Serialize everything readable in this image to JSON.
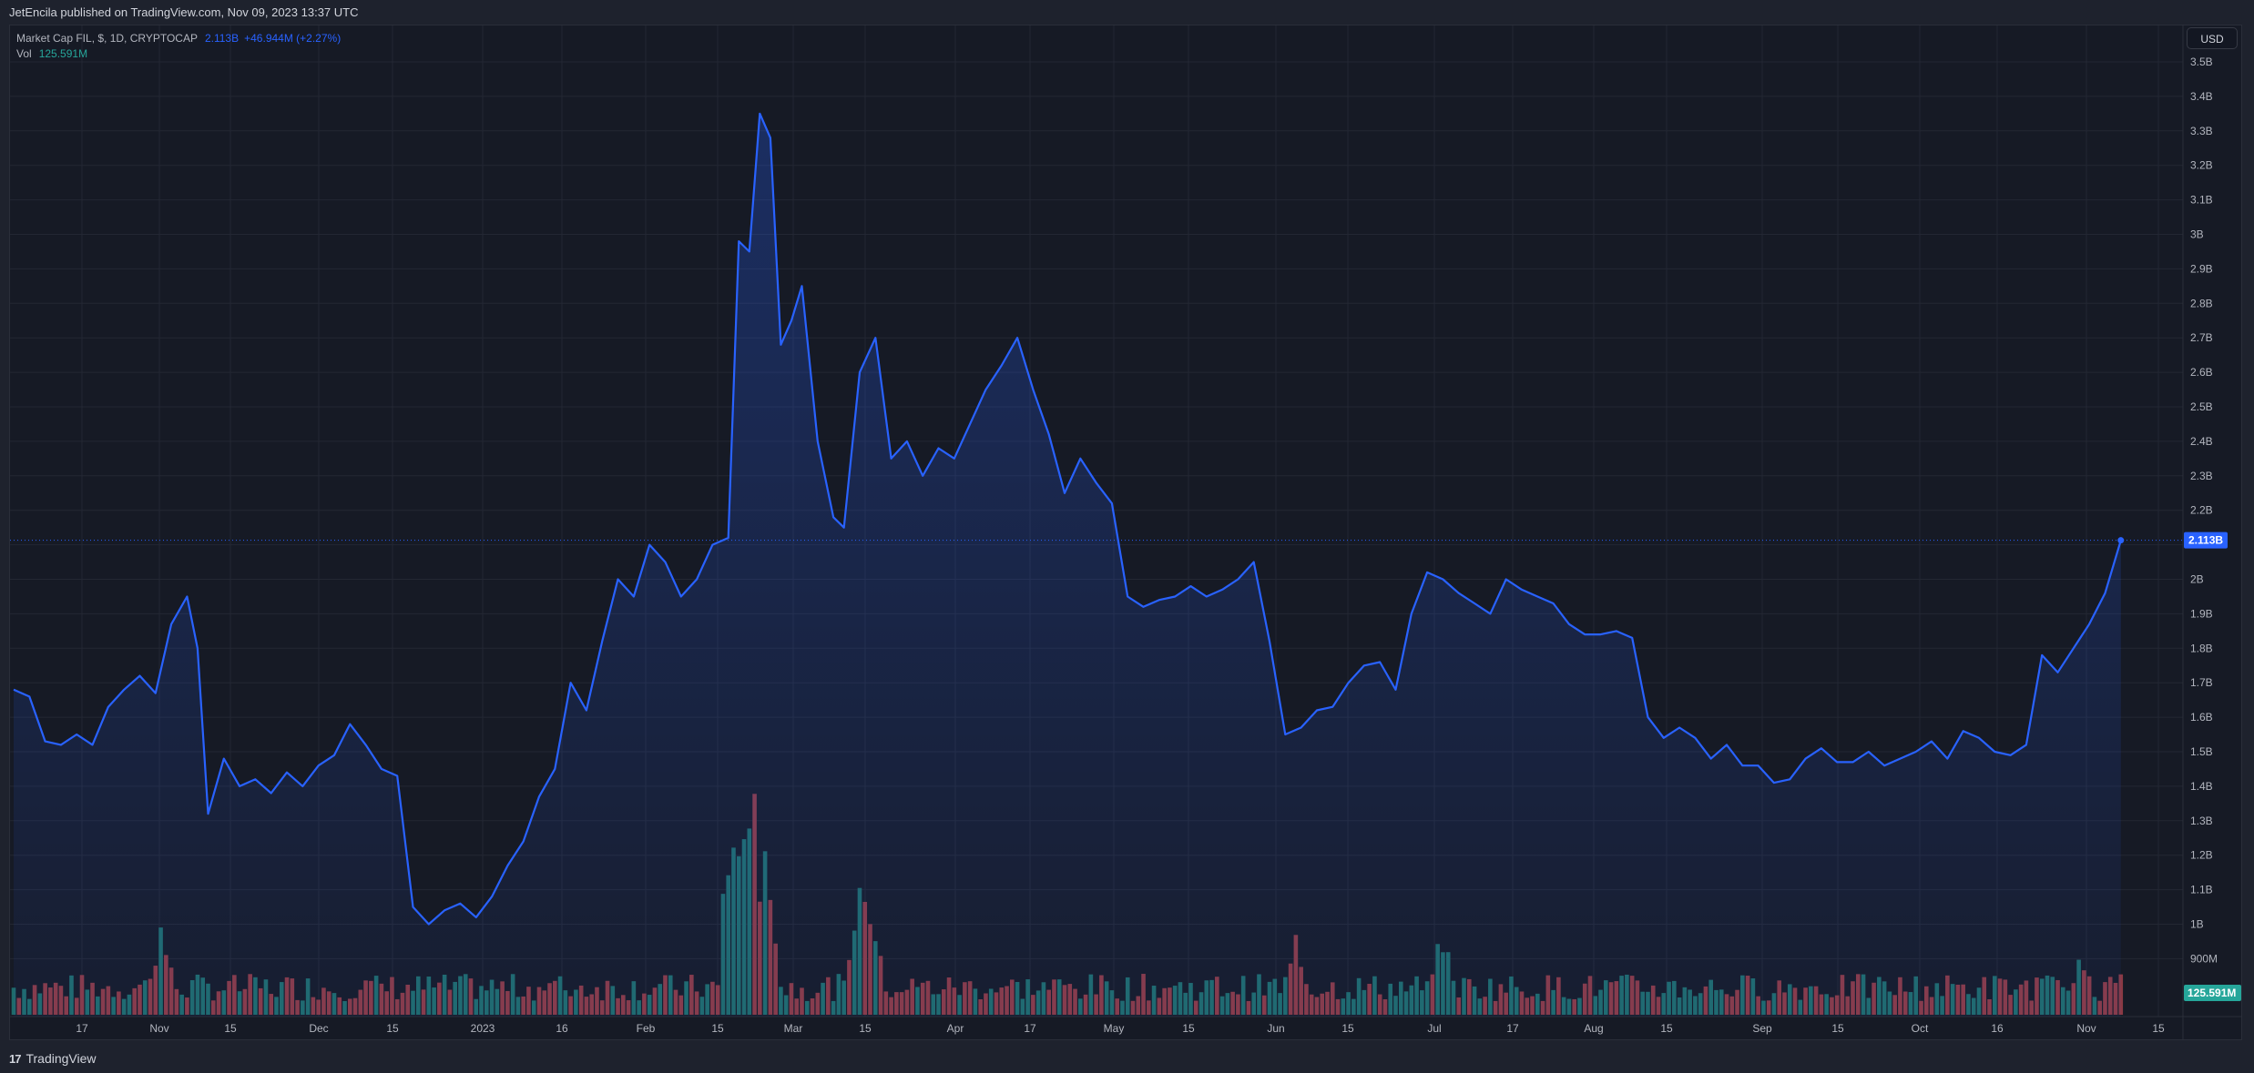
{
  "header": {
    "published_by": "JetEncila published on TradingView.com, Nov 09, 2023 13:37 UTC"
  },
  "legend": {
    "symbol": "Market Cap FIL, $, 1D, CRYPTOCAP",
    "last_value": "2.113B",
    "change": "+46.944M (+2.27%)",
    "volume_label": "Vol",
    "volume_value": "125.591M"
  },
  "price_axis": {
    "currency_button": "USD",
    "ticks": [
      "3.5B",
      "3.4B",
      "3.3B",
      "3.2B",
      "3.1B",
      "3B",
      "2.9B",
      "2.8B",
      "2.7B",
      "2.6B",
      "2.5B",
      "2.4B",
      "2.3B",
      "2.2B",
      "2B",
      "1.9B",
      "1.8B",
      "1.7B",
      "1.6B",
      "1.5B",
      "1.4B",
      "1.3B",
      "1.2B",
      "1.1B",
      "1B",
      "900M"
    ],
    "last_price_badge": "2.113B",
    "volume_badge": "125.591M"
  },
  "time_axis": {
    "labels": [
      "17",
      "Nov",
      "15",
      "Dec",
      "15",
      "2023",
      "16",
      "Feb",
      "15",
      "Mar",
      "15",
      "Apr",
      "17",
      "May",
      "15",
      "Jun",
      "15",
      "Jul",
      "17",
      "Aug",
      "15",
      "Sep",
      "15",
      "Oct",
      "16",
      "Nov",
      "15"
    ]
  },
  "footer": {
    "brand": "TradingView",
    "logo": "17"
  },
  "colors": {
    "line": "#2962ff",
    "up_volume": "#1f6b6a",
    "down_volume": "#8b3a44",
    "background": "#161a25",
    "grid": "#232733",
    "badge_price": "#2962ff",
    "badge_volume": "#26a69a"
  },
  "chart_data": {
    "type": "area",
    "title": "Market Cap FIL, $, 1D, CRYPTOCAP",
    "xlabel": "",
    "ylabel": "USD",
    "ylim": [
      0.85,
      3.55
    ],
    "grid": true,
    "legend_position": "top-left",
    "x": [
      "2022-10-04",
      "2022-10-07",
      "2022-10-10",
      "2022-10-13",
      "2022-10-16",
      "2022-10-19",
      "2022-10-22",
      "2022-10-25",
      "2022-10-28",
      "2022-10-31",
      "2022-11-03",
      "2022-11-06",
      "2022-11-08",
      "2022-11-10",
      "2022-11-13",
      "2022-11-16",
      "2022-11-19",
      "2022-11-22",
      "2022-11-25",
      "2022-11-28",
      "2022-12-01",
      "2022-12-04",
      "2022-12-07",
      "2022-12-10",
      "2022-12-13",
      "2022-12-16",
      "2022-12-19",
      "2022-12-22",
      "2022-12-25",
      "2022-12-28",
      "2022-12-31",
      "2023-01-03",
      "2023-01-06",
      "2023-01-09",
      "2023-01-12",
      "2023-01-15",
      "2023-01-18",
      "2023-01-21",
      "2023-01-24",
      "2023-01-27",
      "2023-01-30",
      "2023-02-02",
      "2023-02-05",
      "2023-02-08",
      "2023-02-11",
      "2023-02-14",
      "2023-02-17",
      "2023-02-19",
      "2023-02-21",
      "2023-02-23",
      "2023-02-25",
      "2023-02-27",
      "2023-03-01",
      "2023-03-03",
      "2023-03-06",
      "2023-03-09",
      "2023-03-11",
      "2023-03-14",
      "2023-03-17",
      "2023-03-20",
      "2023-03-23",
      "2023-03-26",
      "2023-03-29",
      "2023-04-01",
      "2023-04-04",
      "2023-04-07",
      "2023-04-10",
      "2023-04-13",
      "2023-04-16",
      "2023-04-19",
      "2023-04-22",
      "2023-04-25",
      "2023-04-28",
      "2023-05-01",
      "2023-05-04",
      "2023-05-07",
      "2023-05-10",
      "2023-05-13",
      "2023-05-16",
      "2023-05-19",
      "2023-05-22",
      "2023-05-25",
      "2023-05-28",
      "2023-05-31",
      "2023-06-03",
      "2023-06-06",
      "2023-06-09",
      "2023-06-12",
      "2023-06-15",
      "2023-06-18",
      "2023-06-21",
      "2023-06-24",
      "2023-06-27",
      "2023-06-30",
      "2023-07-03",
      "2023-07-06",
      "2023-07-09",
      "2023-07-12",
      "2023-07-15",
      "2023-07-18",
      "2023-07-21",
      "2023-07-24",
      "2023-07-27",
      "2023-07-30",
      "2023-08-02",
      "2023-08-05",
      "2023-08-08",
      "2023-08-11",
      "2023-08-14",
      "2023-08-17",
      "2023-08-20",
      "2023-08-23",
      "2023-08-26",
      "2023-08-29",
      "2023-09-01",
      "2023-09-04",
      "2023-09-07",
      "2023-09-10",
      "2023-09-13",
      "2023-09-16",
      "2023-09-19",
      "2023-09-22",
      "2023-09-25",
      "2023-09-28",
      "2023-10-01",
      "2023-10-04",
      "2023-10-07",
      "2023-10-10",
      "2023-10-13",
      "2023-10-16",
      "2023-10-19",
      "2023-10-22",
      "2023-10-25",
      "2023-10-28",
      "2023-10-31",
      "2023-11-03",
      "2023-11-06",
      "2023-11-09"
    ],
    "series": [
      {
        "name": "Market Cap FIL",
        "values": [
          1.68,
          1.66,
          1.53,
          1.52,
          1.55,
          1.52,
          1.63,
          1.68,
          1.72,
          1.67,
          1.87,
          1.95,
          1.8,
          1.32,
          1.48,
          1.4,
          1.42,
          1.38,
          1.44,
          1.4,
          1.46,
          1.49,
          1.58,
          1.52,
          1.45,
          1.43,
          1.05,
          1.0,
          1.04,
          1.06,
          1.02,
          1.08,
          1.17,
          1.24,
          1.37,
          1.45,
          1.7,
          1.62,
          1.82,
          2.0,
          1.95,
          2.1,
          2.05,
          1.95,
          2.0,
          2.1,
          2.12,
          2.98,
          2.95,
          3.35,
          3.28,
          2.68,
          2.75,
          2.85,
          2.4,
          2.18,
          2.15,
          2.6,
          2.7,
          2.35,
          2.4,
          2.3,
          2.38,
          2.35,
          2.45,
          2.55,
          2.62,
          2.7,
          2.55,
          2.42,
          2.25,
          2.35,
          2.28,
          2.22,
          1.95,
          1.92,
          1.94,
          1.95,
          1.98,
          1.95,
          1.97,
          2.0,
          2.05,
          1.82,
          1.55,
          1.57,
          1.62,
          1.63,
          1.7,
          1.75,
          1.76,
          1.68,
          1.9,
          2.02,
          2.0,
          1.96,
          1.93,
          1.9,
          2.0,
          1.97,
          1.95,
          1.93,
          1.87,
          1.84,
          1.84,
          1.85,
          1.83,
          1.6,
          1.54,
          1.57,
          1.54,
          1.48,
          1.52,
          1.46,
          1.46,
          1.41,
          1.42,
          1.48,
          1.51,
          1.47,
          1.47,
          1.5,
          1.46,
          1.48,
          1.5,
          1.53,
          1.48,
          1.56,
          1.54,
          1.5,
          1.49,
          1.52,
          1.78,
          1.73,
          1.8,
          1.87,
          1.96,
          2.113
        ]
      },
      {
        "name": "Vol",
        "values": [],
        "note": "daily volume histogram; teal = up day, red = down day; last value 125.591M"
      }
    ],
    "annotations": [
      "Last value 2.113B",
      "Volume 125.591M"
    ]
  }
}
